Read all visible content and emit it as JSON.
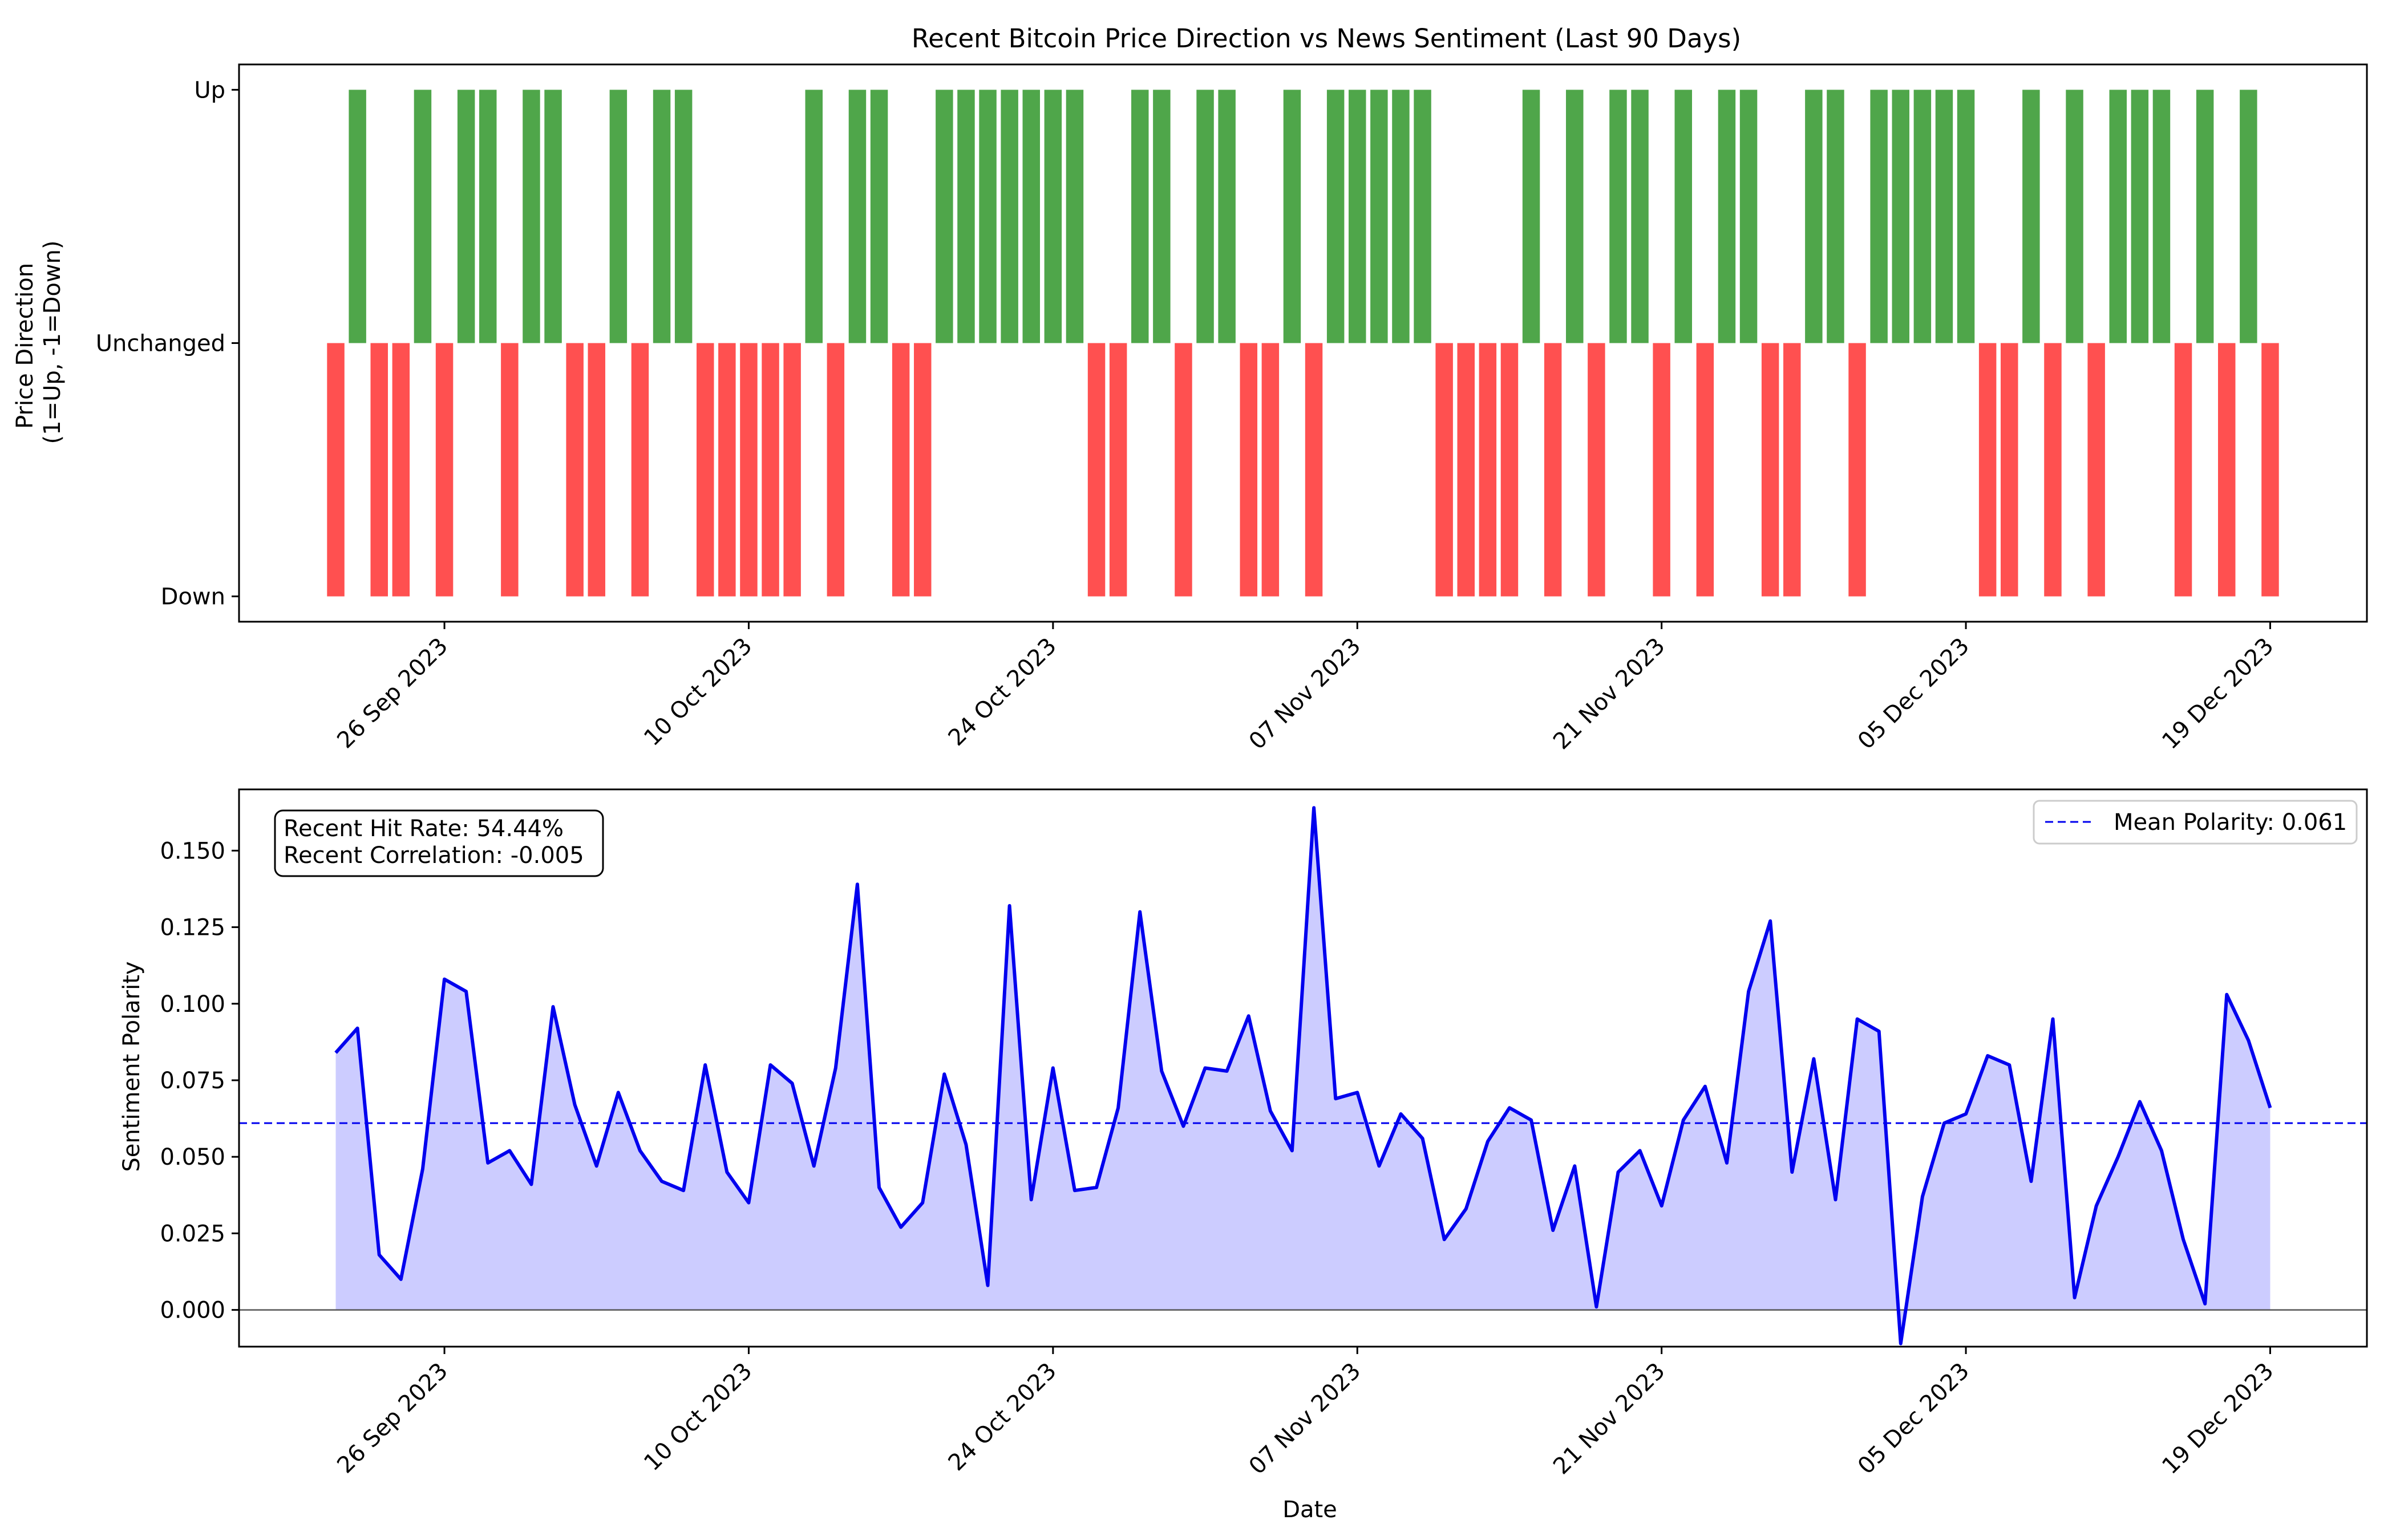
{
  "chart_data": [
    {
      "type": "bar",
      "title": "Recent Bitcoin Price Direction vs News Sentiment (Last 90 Days)",
      "ylabel_lines": [
        "Price Direction",
        "(1=Up, -1=Down)"
      ],
      "y_ticks": [
        {
          "value": 1,
          "label": "Up"
        },
        {
          "value": 0,
          "label": "Unchanged"
        },
        {
          "value": -1,
          "label": "Down"
        }
      ],
      "ylim": [
        -1.1,
        1.1
      ],
      "start_date": "2023-09-21",
      "x_tick_labels": [
        "26 Sep 2023",
        "10 Oct 2023",
        "24 Oct 2023",
        "07 Nov 2023",
        "21 Nov 2023",
        "05 Dec 2023",
        "19 Dec 2023"
      ],
      "colors": {
        "up": "#4fa64a",
        "down": "#ff5050"
      },
      "values": [
        -1,
        1,
        -1,
        -1,
        1,
        -1,
        1,
        1,
        -1,
        1,
        1,
        -1,
        -1,
        1,
        -1,
        1,
        1,
        -1,
        -1,
        -1,
        -1,
        -1,
        1,
        -1,
        1,
        1,
        -1,
        -1,
        1,
        1,
        1,
        1,
        1,
        1,
        1,
        -1,
        -1,
        1,
        1,
        -1,
        1,
        1,
        -1,
        -1,
        1,
        -1,
        1,
        1,
        1,
        1,
        1,
        -1,
        -1,
        -1,
        -1,
        1,
        -1,
        1,
        -1,
        1,
        1,
        -1,
        1,
        -1,
        1,
        1,
        -1,
        -1,
        1,
        1,
        -1,
        1,
        1,
        1,
        1,
        1,
        -1,
        -1,
        1,
        -1,
        1,
        -1,
        1,
        1,
        1,
        -1,
        1,
        -1,
        1,
        -1
      ]
    },
    {
      "type": "area",
      "xlabel": "Date",
      "ylabel": "Sentiment Polarity",
      "ylim": [
        -0.012,
        0.17
      ],
      "y_ticks": [
        0.0,
        0.025,
        0.05,
        0.075,
        0.1,
        0.125,
        0.15
      ],
      "y_tick_labels": [
        "0.000",
        "0.025",
        "0.050",
        "0.075",
        "0.100",
        "0.125",
        "0.150"
      ],
      "start_date": "2023-09-21",
      "x_tick_labels": [
        "26 Sep 2023",
        "10 Oct 2023",
        "24 Oct 2023",
        "07 Nov 2023",
        "21 Nov 2023",
        "05 Dec 2023",
        "19 Dec 2023"
      ],
      "series": [
        {
          "name": "Sentiment",
          "color": "#0000ee",
          "fill": "#ccccff",
          "values": [
            0.084,
            0.092,
            0.018,
            0.01,
            0.046,
            0.108,
            0.104,
            0.048,
            0.052,
            0.041,
            0.099,
            0.067,
            0.047,
            0.071,
            0.052,
            0.042,
            0.039,
            0.08,
            0.045,
            0.035,
            0.08,
            0.074,
            0.047,
            0.079,
            0.139,
            0.04,
            0.027,
            0.035,
            0.077,
            0.054,
            0.008,
            0.132,
            0.036,
            0.079,
            0.039,
            0.04,
            0.066,
            0.13,
            0.078,
            0.06,
            0.079,
            0.078,
            0.096,
            0.065,
            0.052,
            0.164,
            0.069,
            0.071,
            0.047,
            0.064,
            0.056,
            0.023,
            0.033,
            0.055,
            0.066,
            0.062,
            0.026,
            0.047,
            0.001,
            0.045,
            0.052,
            0.034,
            0.062,
            0.073,
            0.048,
            0.104,
            0.127,
            0.045,
            0.082,
            0.036,
            0.095,
            0.091,
            -0.011,
            0.037,
            0.061,
            0.064,
            0.083,
            0.08,
            0.042,
            0.095,
            0.004,
            0.034,
            0.05,
            0.068,
            0.052,
            0.023,
            0.002,
            0.103,
            0.088,
            0.066
          ]
        }
      ],
      "mean_line": {
        "value": 0.061,
        "label": "Mean Polarity: 0.061",
        "color": "#0000ee"
      },
      "legend_position": "top-right",
      "annotation_lines": [
        "Recent Hit Rate: 54.44%",
        "Recent Correlation: -0.005"
      ]
    }
  ]
}
